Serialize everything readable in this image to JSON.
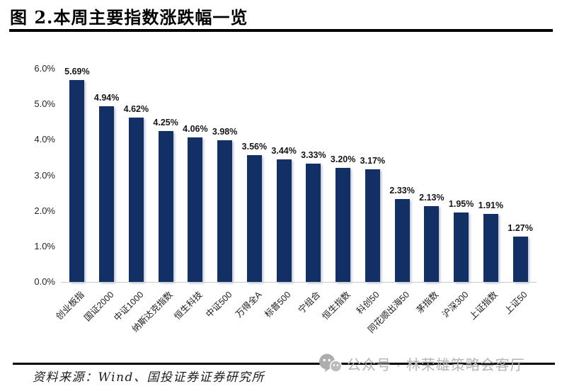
{
  "figure": {
    "title": "图 2.本周主要指数涨跌幅一览",
    "source_note": "资料来源：Wind、国投证券证券研究所",
    "watermark_text": "公众号 · 林荣雄策略会客厅",
    "watermark_icon": "wechat-bubbles-icon"
  },
  "chart_data": {
    "type": "bar",
    "title": "本周主要指数涨跌幅一览",
    "categories": [
      "创业板指",
      "国证2000",
      "中证1000",
      "纳斯达克指数",
      "恒生科技",
      "中证500",
      "万得全A",
      "标普500",
      "宁组合",
      "恒生指数",
      "科创50",
      "同花顺出海50",
      "茅指数",
      "沪深300",
      "上证指数",
      "上证50"
    ],
    "values": [
      5.69,
      4.94,
      4.62,
      4.25,
      4.06,
      3.98,
      3.56,
      3.44,
      3.33,
      3.2,
      3.17,
      2.33,
      2.13,
      1.95,
      1.91,
      1.27
    ],
    "value_labels": [
      "5.69%",
      "4.94%",
      "4.62%",
      "4.25%",
      "4.06%",
      "3.98%",
      "3.56%",
      "3.44%",
      "3.33%",
      "3.20%",
      "3.17%",
      "2.33%",
      "2.13%",
      "1.95%",
      "1.91%",
      "1.27%"
    ],
    "xlabel": "",
    "ylabel": "",
    "ylim": [
      0,
      6
    ],
    "ytick_labels": [
      "0.0%",
      "1.0%",
      "2.0%",
      "3.0%",
      "4.0%",
      "5.0%",
      "6.0%"
    ],
    "grid": false,
    "legend": "none",
    "bar_color": "#122f66",
    "x_label_rotation_deg": -45
  }
}
